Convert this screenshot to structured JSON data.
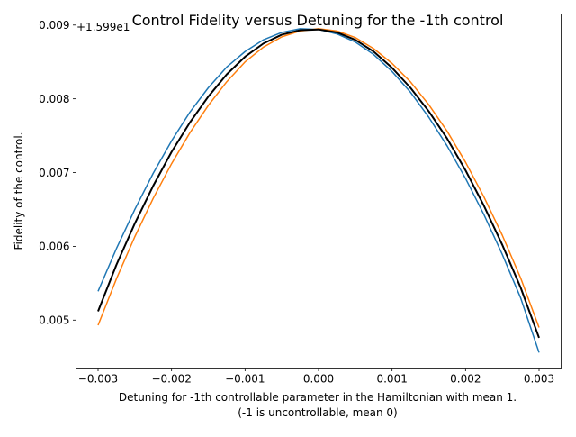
{
  "chart_data": {
    "type": "line",
    "title": "Control Fidelity versus Detuning for the -1th control",
    "xlabel_line1": "Detuning for -1th controllable parameter in the Hamiltonian with mean 1.",
    "xlabel_line2": "(-1 is uncontrollable, mean 0)",
    "ylabel": "Fidelity of the control.",
    "y_offset_label": "+1.599e1",
    "xlim": [
      -0.0033,
      0.0033
    ],
    "ylim": [
      0.00435,
      0.00915
    ],
    "x_ticks": [
      -0.003,
      -0.002,
      -0.001,
      0.0,
      0.001,
      0.002,
      0.003
    ],
    "x_tick_labels": [
      "−0.003",
      "−0.002",
      "−0.001",
      "0.000",
      "0.001",
      "0.002",
      "0.003"
    ],
    "y_ticks": [
      0.005,
      0.006,
      0.007,
      0.008,
      0.009
    ],
    "y_tick_labels": [
      "0.005",
      "0.006",
      "0.007",
      "0.008",
      "0.009"
    ],
    "x": [
      -0.003,
      -0.00275,
      -0.0025,
      -0.00225,
      -0.002,
      -0.00175,
      -0.0015,
      -0.00125,
      -0.001,
      -0.00075,
      -0.0005,
      -0.00025,
      0.0,
      0.00025,
      0.0005,
      0.00075,
      0.001,
      0.00125,
      0.0015,
      0.00175,
      0.002,
      0.00225,
      0.0025,
      0.00275,
      0.003
    ],
    "series": [
      {
        "color": "#1f77b4",
        "width": 1.5,
        "values": [
          0.00539,
          0.00597,
          0.0065,
          0.00699,
          0.00743,
          0.00782,
          0.00815,
          0.00843,
          0.00864,
          0.0088,
          0.0089,
          0.00895,
          0.00894,
          0.00888,
          0.00877,
          0.0086,
          0.00837,
          0.00809,
          0.00775,
          0.00736,
          0.00692,
          0.00643,
          0.00589,
          0.0053,
          0.00456
        ]
      },
      {
        "color": "#ff7f0e",
        "width": 1.5,
        "values": [
          0.00493,
          0.00556,
          0.00613,
          0.00665,
          0.00712,
          0.00754,
          0.00791,
          0.00823,
          0.0085,
          0.0087,
          0.00884,
          0.00892,
          0.00895,
          0.00892,
          0.00883,
          0.00868,
          0.00848,
          0.00823,
          0.00792,
          0.00756,
          0.00714,
          0.00667,
          0.00615,
          0.00557,
          0.0049
        ]
      },
      {
        "color": "#000000",
        "width": 2.0,
        "values": [
          0.00512,
          0.00575,
          0.00631,
          0.00682,
          0.00728,
          0.00768,
          0.00803,
          0.00833,
          0.00857,
          0.00875,
          0.00887,
          0.00893,
          0.00894,
          0.0089,
          0.0088,
          0.00864,
          0.00842,
          0.00815,
          0.00783,
          0.00746,
          0.00703,
          0.00655,
          0.00602,
          0.00544,
          0.00476
        ]
      }
    ]
  }
}
